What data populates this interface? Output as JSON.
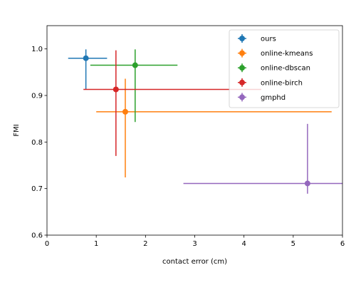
{
  "chart_data": {
    "type": "scatter",
    "title": "",
    "xlabel": "contact error (cm)",
    "ylabel": "FMI",
    "xlim": [
      0,
      6
    ],
    "ylim": [
      0.6,
      1.05
    ],
    "xticks": [
      0,
      1,
      2,
      3,
      4,
      5,
      6
    ],
    "xtick_labels": [
      "0",
      "1",
      "2",
      "3",
      "4",
      "5",
      "6"
    ],
    "yticks": [
      0.6,
      0.7,
      0.8,
      0.9,
      1.0
    ],
    "ytick_labels": [
      "0.6",
      "0.7",
      "0.8",
      "0.9",
      "1.0"
    ],
    "grid": false,
    "legend_position": "top-right",
    "series": [
      {
        "name": "ours",
        "color": "#1f77b4",
        "x": 0.79,
        "y": 0.98,
        "x_lo": 0.43,
        "x_hi": 1.22,
        "y_lo": 0.913,
        "y_hi": 0.999
      },
      {
        "name": "online-kmeans",
        "color": "#ff7f0e",
        "x": 1.59,
        "y": 0.865,
        "x_lo": 1.0,
        "x_hi": 5.78,
        "y_lo": 0.724,
        "y_hi": 0.936
      },
      {
        "name": "online-dbscan",
        "color": "#2ca02c",
        "x": 1.79,
        "y": 0.965,
        "x_lo": 0.88,
        "x_hi": 2.65,
        "y_lo": 0.843,
        "y_hi": 0.999
      },
      {
        "name": "online-birch",
        "color": "#d62728",
        "x": 1.4,
        "y": 0.913,
        "x_lo": 0.74,
        "x_hi": 4.35,
        "y_lo": 0.77,
        "y_hi": 0.997
      },
      {
        "name": "gmphd",
        "color": "#9467bd",
        "x": 5.29,
        "y": 0.711,
        "x_lo": 2.77,
        "x_hi": 6.0,
        "y_lo": 0.689,
        "y_hi": 0.839
      }
    ]
  }
}
